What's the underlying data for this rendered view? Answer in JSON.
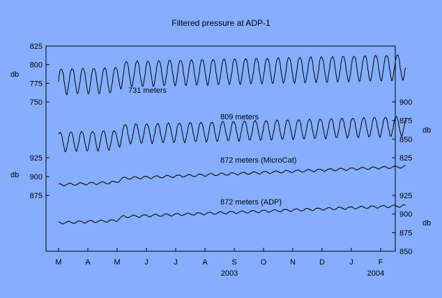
{
  "chart_data": {
    "type": "line",
    "title": "Filtered pressure at ADP-1",
    "x": {
      "unit": "month",
      "tick_labels": [
        "M",
        "A",
        "M",
        "J",
        "J",
        "A",
        "S",
        "O",
        "N",
        "D",
        "J",
        "F"
      ],
      "year_labels": [
        {
          "label": "2003",
          "month_index": 6
        },
        {
          "label": "2004",
          "month_index": 11
        }
      ],
      "range": [
        0,
        11.85
      ]
    },
    "y_axes": [
      {
        "side": "left",
        "label": "db",
        "ticks": [
          "825",
          "800",
          "775",
          "750"
        ],
        "tick_values": [
          825,
          800,
          775,
          750
        ],
        "series": "731 meters"
      },
      {
        "side": "right",
        "label": "db",
        "ticks": [
          "900",
          "875",
          "850",
          "825"
        ],
        "tick_values": [
          900,
          875,
          850,
          825
        ],
        "series": "809 meters"
      },
      {
        "side": "left",
        "label": "db",
        "ticks": [
          "925",
          "900",
          "875"
        ],
        "tick_values": [
          925,
          900,
          875
        ],
        "series": "872 meters (MicroCat)"
      },
      {
        "side": "right",
        "label": "db",
        "ticks": [
          "925",
          "900",
          "875",
          "850"
        ],
        "tick_values": [
          925,
          900,
          875,
          850
        ],
        "series": "872 meters (ADP)"
      }
    ],
    "series": [
      {
        "name": "731 meters",
        "axis": 0,
        "baseline_start": 777,
        "baseline_end": 796,
        "tide_amplitude": 17,
        "tide_cycles": 32,
        "step_at": 2.2,
        "step": 8,
        "ylim": [
          750,
          825
        ]
      },
      {
        "name": "809 meters",
        "axis": 1,
        "baseline_start": 846,
        "baseline_end": 867,
        "tide_amplitude": 13,
        "tide_cycles": 32,
        "step_at": 2.2,
        "step": 8,
        "ylim": [
          825,
          900
        ]
      },
      {
        "name": "872 meters (MicroCat)",
        "axis": 2,
        "baseline_start": 889,
        "baseline_end": 913,
        "tide_amplitude": 1.5,
        "tide_cycles": 32,
        "step_at": 2.2,
        "step": 5,
        "ylim": [
          875,
          925
        ]
      },
      {
        "name": "872 meters (ADP)",
        "axis": 3,
        "baseline_start": 888,
        "baseline_end": 911,
        "tide_amplitude": 1.5,
        "tide_cycles": 32,
        "step_at": 2.2,
        "step": 5,
        "ylim": [
          850,
          925
        ]
      }
    ],
    "grid": false,
    "legend": "none"
  },
  "colors": {
    "background": "#86aeff",
    "line": "#000000"
  }
}
